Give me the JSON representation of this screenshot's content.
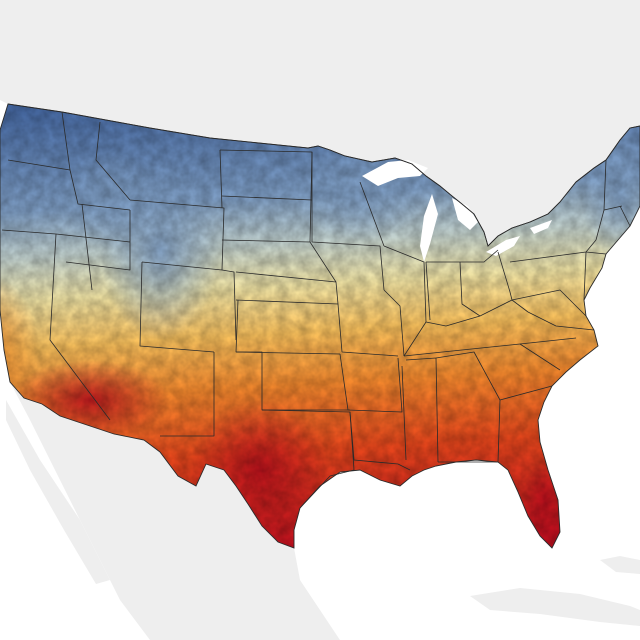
{
  "map": {
    "colors": {
      "background": "#ffffff",
      "surrounding_land": "#eeeeee",
      "great_lakes": "#ffffff",
      "state_border": "#2a2a2a",
      "ramp": [
        "#3b5f9e",
        "#7f9fc6",
        "#c4d3cf",
        "#f3e6a6",
        "#fbc25d",
        "#f68a2e",
        "#e8471c",
        "#c0101e"
      ]
    },
    "icons": {
      "map": "us-temperature-map-icon"
    }
  }
}
